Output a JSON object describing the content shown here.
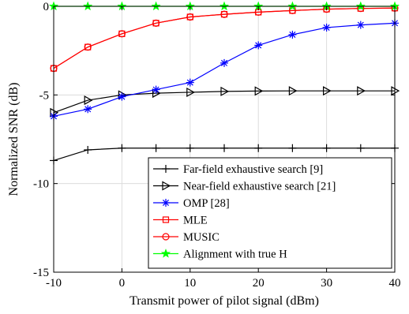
{
  "chart_data": {
    "type": "line",
    "title": "",
    "xlabel": "Transmit power of pilot signal (dBm)",
    "ylabel": "Normalized SNR (dB)",
    "xlim": [
      -10,
      40
    ],
    "ylim": [
      -15,
      0
    ],
    "xticks": [
      -10,
      0,
      10,
      20,
      30,
      40
    ],
    "yticks": [
      -15,
      -10,
      -5,
      0
    ],
    "grid": true,
    "legend_position": "bottom-right",
    "x": [
      -10,
      -5,
      0,
      5,
      10,
      15,
      20,
      25,
      30,
      35,
      40
    ],
    "series": [
      {
        "name": "Far-field exhaustive search [9]",
        "color": "#000000",
        "marker": "plus",
        "values": [
          -8.7,
          -8.1,
          -8.0,
          -8.0,
          -8.0,
          -8.0,
          -8.0,
          -8.0,
          -8.0,
          -8.0,
          -8.0
        ]
      },
      {
        "name": "Near-field exhaustive search [21]",
        "color": "#000000",
        "marker": "triangle-right",
        "values": [
          -6.0,
          -5.3,
          -5.0,
          -4.9,
          -4.85,
          -4.8,
          -4.78,
          -4.77,
          -4.77,
          -4.77,
          -4.77
        ]
      },
      {
        "name": "OMP [28]",
        "color": "#0000ff",
        "marker": "asterisk",
        "values": [
          -6.2,
          -5.8,
          -5.1,
          -4.7,
          -4.3,
          -3.2,
          -2.2,
          -1.6,
          -1.2,
          -1.05,
          -0.95
        ]
      },
      {
        "name": "MLE",
        "color": "#ff0000",
        "marker": "square",
        "values": [
          -3.5,
          -2.3,
          -1.55,
          -0.95,
          -0.6,
          -0.45,
          -0.33,
          -0.24,
          -0.16,
          -0.12,
          -0.1
        ]
      },
      {
        "name": "MUSIC",
        "color": "#ff0000",
        "marker": "circle",
        "values": [
          -3.5,
          -2.3,
          -1.55,
          -0.95,
          -0.6,
          -0.45,
          -0.33,
          -0.24,
          -0.16,
          -0.12,
          -0.1
        ]
      },
      {
        "name": "Alignment with true H",
        "color": "#00ff00",
        "marker": "star",
        "values": [
          0,
          0,
          0,
          0,
          0,
          0,
          0,
          0,
          0,
          0,
          0
        ]
      }
    ]
  }
}
